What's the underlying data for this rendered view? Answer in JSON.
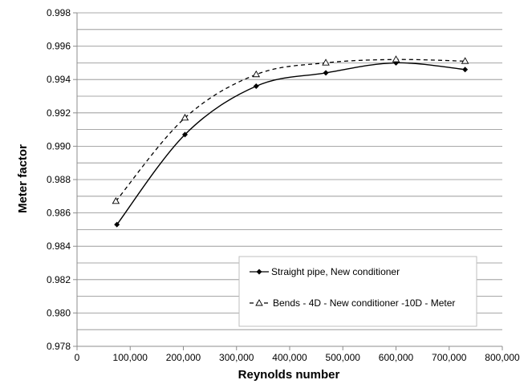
{
  "chart_data": {
    "type": "line",
    "xlabel": "Reynolds number",
    "ylabel": "Meter factor",
    "xlim": [
      0,
      800000
    ],
    "ylim": [
      0.978,
      0.998
    ],
    "x_ticks": [
      0,
      100000,
      200000,
      300000,
      400000,
      500000,
      600000,
      700000,
      800000
    ],
    "x_tick_labels": [
      "0",
      "100,000",
      "200,000",
      "300,000",
      "400,000",
      "500,000",
      "600,000",
      "700,000",
      "800,000"
    ],
    "y_ticks": [
      0.978,
      0.98,
      0.982,
      0.984,
      0.986,
      0.988,
      0.99,
      0.992,
      0.994,
      0.996,
      0.998
    ],
    "y_tick_labels": [
      "0.978",
      "0.980",
      "0.982",
      "0.984",
      "0.986",
      "0.988",
      "0.990",
      "0.992",
      "0.994",
      "0.996",
      "0.998"
    ],
    "minor_grid_step": 0.001,
    "grid": true,
    "legend_position": "bottom-right",
    "series": [
      {
        "name": "Straight pipe, New conditioner",
        "marker": "diamond",
        "line_style": "solid",
        "color": "#000000",
        "x": [
          75000,
          203000,
          337000,
          468000,
          600000,
          730000
        ],
        "y": [
          0.9853,
          0.9907,
          0.9936,
          0.9944,
          0.995,
          0.9946
        ]
      },
      {
        "name": "Bends - 4D - New conditioner -10D - Meter",
        "marker": "open-triangle",
        "line_style": "dashed",
        "color": "#000000",
        "x": [
          73000,
          203000,
          337000,
          468000,
          600000,
          730000
        ],
        "y": [
          0.9867,
          0.9917,
          0.9943,
          0.995,
          0.9952,
          0.9951
        ]
      }
    ]
  }
}
